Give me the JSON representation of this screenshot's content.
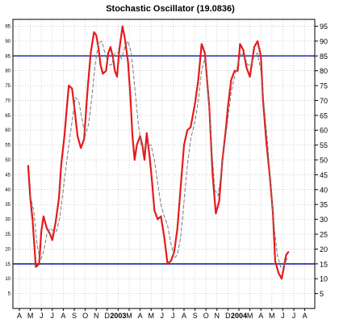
{
  "chart_data": {
    "type": "line",
    "title": "Stochastic Oscillator (19.0836)",
    "xlabel": "",
    "ylabel": "",
    "ylim": [
      0,
      100
    ],
    "y_ticks": [
      5,
      10,
      15,
      20,
      25,
      30,
      35,
      40,
      45,
      50,
      55,
      60,
      65,
      70,
      75,
      80,
      85,
      90,
      95
    ],
    "x_tick_labels": [
      "A",
      "M",
      "J",
      "J",
      "A",
      "S",
      "O",
      "N",
      "D",
      "2003",
      "M",
      "A",
      "M",
      "J",
      "J",
      "A",
      "S",
      "O",
      "N",
      "D",
      "2004",
      "M",
      "A",
      "M",
      "J",
      "J",
      "A"
    ],
    "x_year_labels": [
      "2003",
      "2004"
    ],
    "grid": true,
    "reference_lines": [
      {
        "value": 85,
        "color": "#1c2aa8"
      },
      {
        "value": 15,
        "color": "#1c2aa8"
      }
    ],
    "series": [
      {
        "style": "solid",
        "color": "#e41b1b",
        "x": [
          1.8,
          2.0,
          2.2,
          2.5,
          2.8,
          3.0,
          3.2,
          3.5,
          3.8,
          4.0,
          4.3,
          4.6,
          4.8,
          5.1,
          5.5,
          5.8,
          6.0,
          6.3,
          6.6,
          6.9,
          7.2,
          7.5,
          7.8,
          8.0,
          8.2,
          8.4,
          8.6,
          8.9,
          9.1,
          9.3,
          9.5,
          9.7,
          9.9,
          10.1,
          10.4,
          10.6,
          10.9,
          11.1,
          11.3,
          11.5,
          11.7,
          12.0,
          12.2,
          12.4,
          12.6,
          12.9,
          13.1,
          13.3,
          13.6,
          13.9,
          14.2,
          14.5,
          14.8,
          15.1,
          15.4,
          15.7,
          16.0,
          16.3,
          16.6,
          17.0,
          17.3,
          17.6,
          17.9,
          18.3,
          18.6,
          18.9,
          19.2,
          19.5,
          19.8,
          20.0,
          20.3,
          20.6,
          20.9,
          21.1,
          21.4,
          21.7,
          22.0,
          22.4,
          22.7,
          23.0,
          23.2,
          23.5,
          23.8,
          24.1,
          24.3,
          24.6,
          24.9,
          25.1,
          25.3,
          25.5
        ],
        "values": [
          48,
          37,
          30,
          14,
          15,
          26,
          31,
          27,
          25,
          23,
          29,
          37,
          48,
          58,
          75,
          74,
          68,
          58,
          54,
          57,
          73,
          86,
          93,
          92,
          88,
          82,
          79,
          80,
          86,
          88,
          85,
          80,
          78,
          87,
          95,
          91,
          83,
          72,
          58,
          50,
          55,
          58,
          55,
          50,
          59,
          50,
          42,
          33,
          30,
          31,
          24,
          15,
          16,
          19,
          27,
          41,
          55,
          60,
          61,
          69,
          77,
          89,
          86,
          68,
          45,
          32,
          36,
          50,
          60,
          68,
          77,
          80,
          80,
          89,
          87,
          81,
          78,
          88,
          90,
          85,
          70,
          56,
          45,
          32,
          16,
          12,
          10,
          14,
          18,
          19
        ]
      },
      {
        "style": "dashed",
        "color": "#7a7a7a",
        "x": [
          2.0,
          2.3,
          2.6,
          2.9,
          3.2,
          3.5,
          3.8,
          4.1,
          4.4,
          4.7,
          5.0,
          5.4,
          5.8,
          6.1,
          6.4,
          6.7,
          7.0,
          7.3,
          7.6,
          7.9,
          8.2,
          8.5,
          8.8,
          9.1,
          9.4,
          9.7,
          10.0,
          10.3,
          10.6,
          10.9,
          11.2,
          11.5,
          11.8,
          12.1,
          12.4,
          12.7,
          13.0,
          13.3,
          13.6,
          13.9,
          14.2,
          14.5,
          14.8,
          15.1,
          15.4,
          15.7,
          16.0,
          16.3,
          16.6,
          17.0,
          17.3,
          17.6,
          17.9,
          18.2,
          18.5,
          18.8,
          19.1,
          19.4,
          19.7,
          20.0,
          20.3,
          20.6,
          20.9,
          21.2,
          21.5,
          21.8,
          22.1,
          22.4,
          22.7,
          23.0,
          23.3,
          23.6,
          23.9,
          24.2,
          24.5,
          24.8,
          25.1,
          25.4
        ],
        "values": [
          38,
          33,
          22,
          16,
          19,
          25,
          27,
          26,
          26,
          31,
          40,
          52,
          63,
          71,
          70,
          64,
          58,
          62,
          71,
          82,
          89,
          90,
          86,
          82,
          82,
          86,
          86,
          84,
          88,
          90,
          86,
          75,
          63,
          55,
          54,
          55,
          55,
          50,
          42,
          35,
          31,
          28,
          22,
          17,
          18,
          24,
          36,
          48,
          57,
          63,
          70,
          80,
          84,
          74,
          55,
          40,
          38,
          46,
          55,
          64,
          73,
          78,
          82,
          86,
          85,
          82,
          82,
          85,
          86,
          80,
          68,
          56,
          42,
          28,
          18,
          14,
          14,
          17
        ]
      }
    ]
  }
}
